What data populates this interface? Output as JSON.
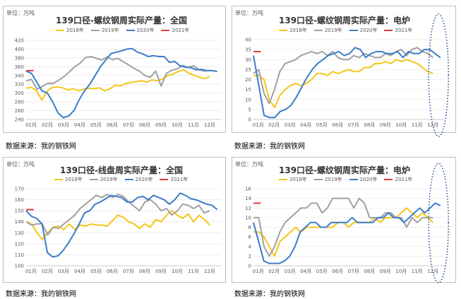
{
  "colors": {
    "y2018": "#f5c518",
    "y2019": "#a0a0a0",
    "y2020": "#3a7dc9",
    "y2021": "#e23a3a",
    "ellipse": "#2f4f9a"
  },
  "source_note": "数据来源：我的钢铁网",
  "chart_data": [
    {
      "type": "line",
      "title": "139口径-螺纹钢周实际产量：全国",
      "unit_label": "单位：万吨",
      "ylim": [
        240,
        420
      ],
      "yticks": [
        "240",
        "260",
        "280",
        "300",
        "320",
        "340",
        "360",
        "380",
        "400",
        "420"
      ],
      "months": [
        "01月",
        "02月",
        "03月",
        "04月",
        "05月",
        "06月",
        "07月",
        "08月",
        "09月",
        "10月",
        "11月",
        "12月"
      ],
      "highlight_ellipse": false,
      "series": [
        {
          "name": "2018年",
          "key": "y2018",
          "values": [
            311,
            313,
            305,
            284,
            305,
            313,
            314,
            312,
            307,
            310,
            305,
            309,
            311,
            310,
            312,
            305,
            310,
            318,
            316,
            322,
            324,
            326,
            328,
            325,
            330,
            328,
            332,
            340,
            343,
            349,
            353,
            345,
            341,
            336,
            333,
            337
          ]
        },
        {
          "name": "2019年",
          "key": "y2019",
          "values": [
            328,
            331,
            309,
            315,
            322,
            322,
            329,
            337,
            348,
            360,
            368,
            381,
            383,
            379,
            375,
            382,
            376,
            379,
            371,
            364,
            356,
            350,
            340,
            336,
            350,
            316,
            345,
            352,
            355,
            363,
            358,
            362,
            353,
            350,
            352
          ]
        },
        {
          "name": "2020年",
          "key": "y2020",
          "values": [
            350,
            345,
            325,
            305,
            300,
            280,
            255,
            244,
            248,
            260,
            285,
            305,
            320,
            340,
            360,
            375,
            390,
            393,
            396,
            400,
            401,
            393,
            389,
            383,
            385,
            383,
            383,
            370,
            372,
            362,
            359,
            358,
            353,
            354,
            351,
            351,
            349
          ]
        },
        {
          "name": "2021年",
          "key": "y2021",
          "values": [
            351,
            351
          ]
        }
      ]
    },
    {
      "type": "line",
      "title": "139口径-螺纹钢周实际产量：电炉",
      "unit_label": "单位：万吨",
      "ylim": [
        0,
        40
      ],
      "yticks": [
        "0",
        "5",
        "10",
        "15",
        "20",
        "25",
        "30",
        "35",
        "40"
      ],
      "months": [
        "01月",
        "02月",
        "03月",
        "04月",
        "05月",
        "06月",
        "07月",
        "08月",
        "09月",
        "10月",
        "11月",
        "12月"
      ],
      "highlight_ellipse": true,
      "series": [
        {
          "name": "2018年",
          "key": "y2018",
          "values": [
            22,
            22,
            20,
            10,
            6,
            12,
            15,
            17,
            18,
            17,
            18,
            20,
            23,
            23,
            22,
            24,
            23,
            24,
            25,
            24,
            24,
            26,
            26,
            28,
            28,
            29,
            28,
            30,
            29,
            30,
            29,
            28,
            26,
            24,
            23
          ]
        },
        {
          "name": "2019年",
          "key": "y2019",
          "values": [
            23,
            25,
            13,
            8,
            15,
            24,
            28,
            29,
            30,
            32,
            33,
            34,
            33,
            34,
            32,
            34,
            31,
            30,
            30,
            32,
            31,
            33,
            32,
            31,
            31,
            33,
            32,
            34,
            35,
            32,
            35,
            36,
            34,
            33,
            31
          ]
        },
        {
          "name": "2020年",
          "key": "y2020",
          "values": [
            32,
            17,
            2,
            1,
            1,
            4,
            5,
            7,
            11,
            16,
            21,
            25,
            28,
            30,
            32,
            33,
            34,
            32,
            33,
            36,
            35,
            31,
            33,
            34,
            34,
            33,
            33,
            34,
            31,
            34,
            33,
            33,
            35,
            35,
            33,
            31
          ]
        },
        {
          "name": "2021年",
          "key": "y2021",
          "values": [
            34,
            34
          ]
        }
      ]
    },
    {
      "type": "line",
      "title": "139口径-线盘周实际产量：全国",
      "unit_label": "单位：万吨",
      "ylim": [
        100,
        170
      ],
      "yticks": [
        "100",
        "110",
        "120",
        "130",
        "140",
        "150",
        "160",
        "170"
      ],
      "months": [
        "01月",
        "02月",
        "03月",
        "04月",
        "05月",
        "06月",
        "07月",
        "08月",
        "09月",
        "10月",
        "11月",
        "12月"
      ],
      "highlight_ellipse": false,
      "series": [
        {
          "name": "2018年",
          "key": "y2018",
          "values": [
            140,
            138,
            130,
            124,
            130,
            135,
            136,
            133,
            138,
            133,
            137,
            136,
            138,
            137,
            137,
            136,
            141,
            146,
            144,
            140,
            138,
            134,
            138,
            135,
            142,
            140,
            146,
            150,
            146,
            143,
            147,
            140,
            146,
            142,
            137
          ]
        },
        {
          "name": "2019年",
          "key": "y2019",
          "values": [
            140,
            137,
            138,
            138,
            128,
            135,
            134,
            138,
            142,
            146,
            152,
            156,
            160,
            164,
            162,
            165,
            162,
            165,
            163,
            158,
            154,
            150,
            158,
            160,
            156,
            150,
            152,
            146,
            150,
            156,
            155,
            152,
            155,
            148,
            150
          ]
        },
        {
          "name": "2020年",
          "key": "y2020",
          "values": [
            150,
            145,
            143,
            138,
            112,
            108,
            109,
            114,
            121,
            129,
            138,
            148,
            150,
            156,
            158,
            161,
            164,
            163,
            162,
            158,
            158,
            162,
            163,
            160,
            164,
            162,
            160,
            156,
            160,
            166,
            164,
            161,
            160,
            158,
            156,
            155,
            151
          ]
        },
        {
          "name": "2021年",
          "key": "y2021",
          "values": [
            151,
            151
          ]
        }
      ]
    },
    {
      "type": "line",
      "title": "139口径-螺纹钢周实际产量：电炉",
      "unit_label": "单位：万吨",
      "ylim": [
        0,
        16
      ],
      "yticks": [
        "0",
        "2",
        "4",
        "6",
        "8",
        "10",
        "12",
        "14",
        "16"
      ],
      "months": [
        "01月",
        "02月",
        "03月",
        "04月",
        "05月",
        "06月",
        "07月",
        "08月",
        "09月",
        "10月",
        "11月",
        "12月"
      ],
      "highlight_ellipse": true,
      "series": [
        {
          "name": "2018年",
          "key": "y2018",
          "values": [
            7,
            7,
            6,
            4,
            2,
            5,
            6,
            7,
            8,
            7,
            8,
            8,
            8,
            8,
            8,
            8,
            9,
            9,
            8,
            9,
            9,
            9,
            9,
            10,
            9,
            10,
            10,
            10,
            11,
            12,
            11,
            10,
            11,
            10,
            9
          ]
        },
        {
          "name": "2019年",
          "key": "y2019",
          "values": [
            10,
            10,
            4,
            2,
            4,
            7,
            9,
            10,
            11,
            12,
            12,
            13,
            13,
            11,
            12,
            14,
            14,
            14,
            14,
            12,
            14,
            13,
            10,
            10,
            10,
            11,
            11,
            10,
            10,
            8,
            10,
            9,
            10,
            10,
            10
          ]
        },
        {
          "name": "2020年",
          "key": "y2020",
          "values": [
            9,
            5,
            1,
            0.5,
            0.5,
            0.5,
            1,
            2,
            4,
            7,
            8,
            9,
            9,
            8,
            8,
            9,
            9,
            9,
            9,
            10,
            9,
            9,
            9,
            9,
            10,
            10,
            11,
            10,
            10,
            9,
            10,
            11,
            12,
            11,
            12,
            13,
            12.5
          ]
        },
        {
          "name": "2021年",
          "key": "y2021",
          "values": [
            13,
            13
          ]
        }
      ]
    }
  ]
}
